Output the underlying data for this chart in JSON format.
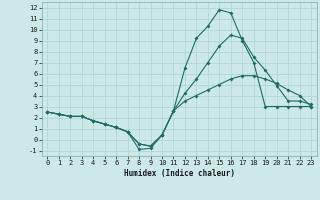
{
  "xlabel": "Humidex (Indice chaleur)",
  "bg_color": "#cde9e7",
  "line_color": "#1e6b68",
  "grid_color": "#b0d8d6",
  "xlim": [
    -0.5,
    23.5
  ],
  "ylim": [
    -1.5,
    12.5
  ],
  "xticks": [
    0,
    1,
    2,
    3,
    4,
    5,
    6,
    7,
    8,
    9,
    10,
    11,
    12,
    13,
    14,
    15,
    16,
    17,
    18,
    19,
    20,
    21,
    22,
    23
  ],
  "yticks": [
    -1,
    0,
    1,
    2,
    3,
    4,
    5,
    6,
    7,
    8,
    9,
    10,
    11,
    12
  ],
  "line1_x": [
    0,
    1,
    2,
    3,
    4,
    5,
    6,
    7,
    8,
    9,
    10,
    11,
    12,
    13,
    14,
    15,
    16,
    17,
    18,
    19,
    20,
    21,
    22,
    23
  ],
  "line1_y": [
    2.5,
    2.3,
    2.1,
    2.1,
    1.7,
    1.4,
    1.1,
    0.7,
    -0.4,
    -0.6,
    0.4,
    2.6,
    4.2,
    5.5,
    7.0,
    8.5,
    9.5,
    9.2,
    7.5,
    6.3,
    4.9,
    3.5,
    3.5,
    3.2
  ],
  "line2_x": [
    0,
    1,
    2,
    3,
    4,
    5,
    6,
    7,
    8,
    9,
    10,
    11,
    12,
    13,
    14,
    15,
    16,
    17,
    18,
    19,
    20,
    21,
    22,
    23
  ],
  "line2_y": [
    2.5,
    2.3,
    2.1,
    2.1,
    1.7,
    1.4,
    1.1,
    0.7,
    -0.9,
    -0.8,
    0.4,
    2.6,
    6.5,
    9.2,
    10.3,
    11.8,
    11.5,
    9.0,
    7.0,
    3.0,
    3.0,
    3.0,
    3.0,
    3.0
  ],
  "line3_x": [
    0,
    1,
    2,
    3,
    4,
    5,
    6,
    7,
    8,
    9,
    10,
    11,
    12,
    13,
    14,
    15,
    16,
    17,
    18,
    19,
    20,
    21,
    22,
    23
  ],
  "line3_y": [
    2.5,
    2.3,
    2.1,
    2.1,
    1.7,
    1.4,
    1.1,
    0.7,
    -0.4,
    -0.6,
    0.4,
    2.6,
    3.5,
    4.0,
    4.5,
    5.0,
    5.5,
    5.8,
    5.8,
    5.5,
    5.1,
    4.5,
    4.0,
    3.0
  ],
  "tick_fontsize": 5.0,
  "xlabel_fontsize": 5.5,
  "marker_size": 2.0,
  "line_width": 0.8
}
